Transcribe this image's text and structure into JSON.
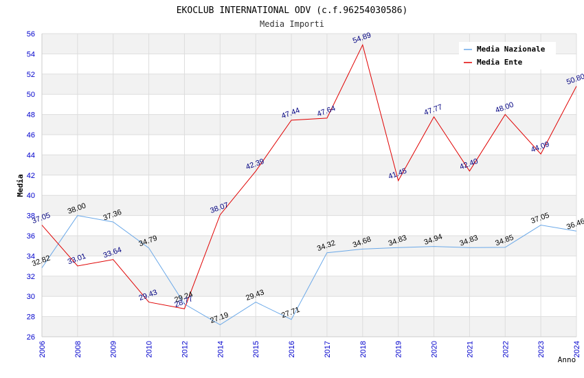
{
  "chart_data": {
    "type": "line",
    "title": "EKOCLUB INTERNATIONAL ODV (c.f.96254030586)",
    "subtitle": "Media Importi",
    "xlabel": "Anno",
    "ylabel": "Media",
    "x": [
      "2006",
      "2008",
      "2009",
      "2010",
      "2012",
      "2014",
      "2015",
      "2016",
      "2017",
      "2018",
      "2019",
      "2020",
      "2021",
      "2022",
      "2023",
      "2024"
    ],
    "ylim": [
      26,
      56
    ],
    "yticks": [
      26,
      28,
      30,
      32,
      34,
      36,
      38,
      40,
      42,
      44,
      46,
      48,
      50,
      52,
      54,
      56
    ],
    "grid": true,
    "legend_position": "top-right",
    "series": [
      {
        "name": "Media Nazionale",
        "color": "#6aa8e8",
        "values": [
          32.82,
          38.0,
          37.36,
          34.79,
          29.24,
          27.19,
          29.43,
          27.71,
          34.32,
          34.68,
          34.83,
          34.94,
          34.83,
          34.85,
          37.05,
          36.46
        ],
        "labels": [
          "32.82",
          "38.00",
          "37.36",
          "34.79",
          "29.24",
          "27.19",
          "29.43",
          "27.71",
          "34.32",
          "34.68",
          "34.83",
          "34.94",
          "34.83",
          "34.85",
          "37.05",
          "36.46"
        ]
      },
      {
        "name": "Media Ente",
        "color": "#e00000",
        "values": [
          37.05,
          33.01,
          33.64,
          29.43,
          28.77,
          38.07,
          42.39,
          47.44,
          47.64,
          54.89,
          41.45,
          47.77,
          42.4,
          48.0,
          44.09,
          50.8
        ],
        "labels": [
          "37.05",
          "33.01",
          "33.64",
          "29.43",
          "28.77",
          "38.07",
          "42.39",
          "47.44",
          "47.64",
          "54.89",
          "41.45",
          "47.77",
          "42.40",
          "48.00",
          "44.09",
          "50.80"
        ]
      }
    ]
  }
}
